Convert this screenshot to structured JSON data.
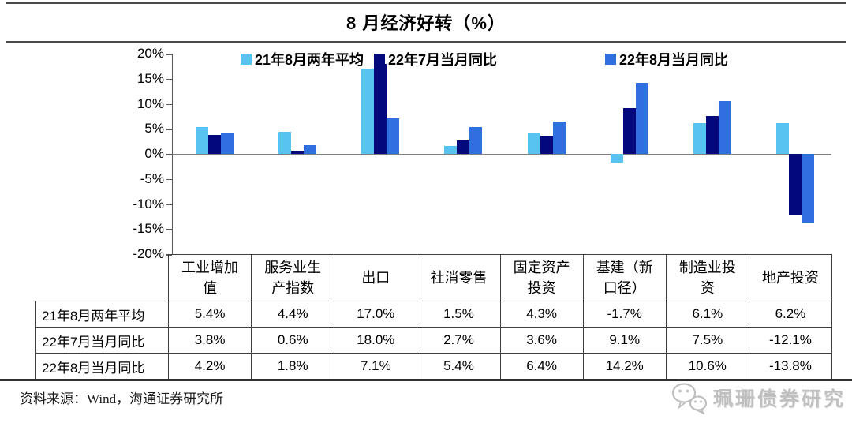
{
  "title": "8 月经济好转（%）",
  "source_note": "资料来源：Wind，海通证券研究所",
  "watermark": {
    "label": "珮珊债券研究",
    "icon": "wechat-icon"
  },
  "colors": {
    "series1": "#59C3F0",
    "series2": "#04087D",
    "series3": "#2F6FE0",
    "zero_line": "#7f7f7f",
    "axis": "#595959",
    "table_border": "#3f3f3f"
  },
  "chart_data": {
    "type": "bar",
    "title": "8 月经济好转（%）",
    "categories": [
      "工业增加值",
      "服务业生产指数",
      "出口",
      "社消零售",
      "固定资产投资",
      "基建（新口径）",
      "制造业投资",
      "地产投资"
    ],
    "series": [
      {
        "name": "21年8月两年平均",
        "color": "#59C3F0",
        "values": [
          5.4,
          4.4,
          17.0,
          1.5,
          4.3,
          -1.7,
          6.1,
          6.2
        ]
      },
      {
        "name": "22年7月当月同比",
        "color": "#04087D",
        "values": [
          3.8,
          0.6,
          18.0,
          2.7,
          3.6,
          9.1,
          7.5,
          -12.1
        ]
      },
      {
        "name": "22年8月当月同比",
        "color": "#2F6FE0",
        "values": [
          4.2,
          1.8,
          7.1,
          5.4,
          6.4,
          14.2,
          10.6,
          -13.8
        ]
      }
    ],
    "ylim": [
      -20,
      20
    ],
    "yticks": [
      "20%",
      "15%",
      "10%",
      "5%",
      "0%",
      "-5%",
      "-10%",
      "-15%",
      "-20%"
    ],
    "legend_position": "top",
    "grid": false
  },
  "table": {
    "col_headers": [
      "工业增加值",
      "服务业生产指数",
      "出口",
      "社消零售",
      "固定资产投资",
      "基建（新口径）",
      "制造业投资",
      "地产投资"
    ],
    "rows": [
      {
        "label": "21年8月两年平均",
        "values": [
          "5.4%",
          "4.4%",
          "17.0%",
          "1.5%",
          "4.3%",
          "-1.7%",
          "6.1%",
          "6.2%"
        ]
      },
      {
        "label": "22年7月当月同比",
        "values": [
          "3.8%",
          "0.6%",
          "18.0%",
          "2.7%",
          "3.6%",
          "9.1%",
          "7.5%",
          "-12.1%"
        ]
      },
      {
        "label": "22年8月当月同比",
        "values": [
          "4.2%",
          "1.8%",
          "7.1%",
          "5.4%",
          "6.4%",
          "14.2%",
          "10.6%",
          "-13.8%"
        ]
      }
    ]
  }
}
